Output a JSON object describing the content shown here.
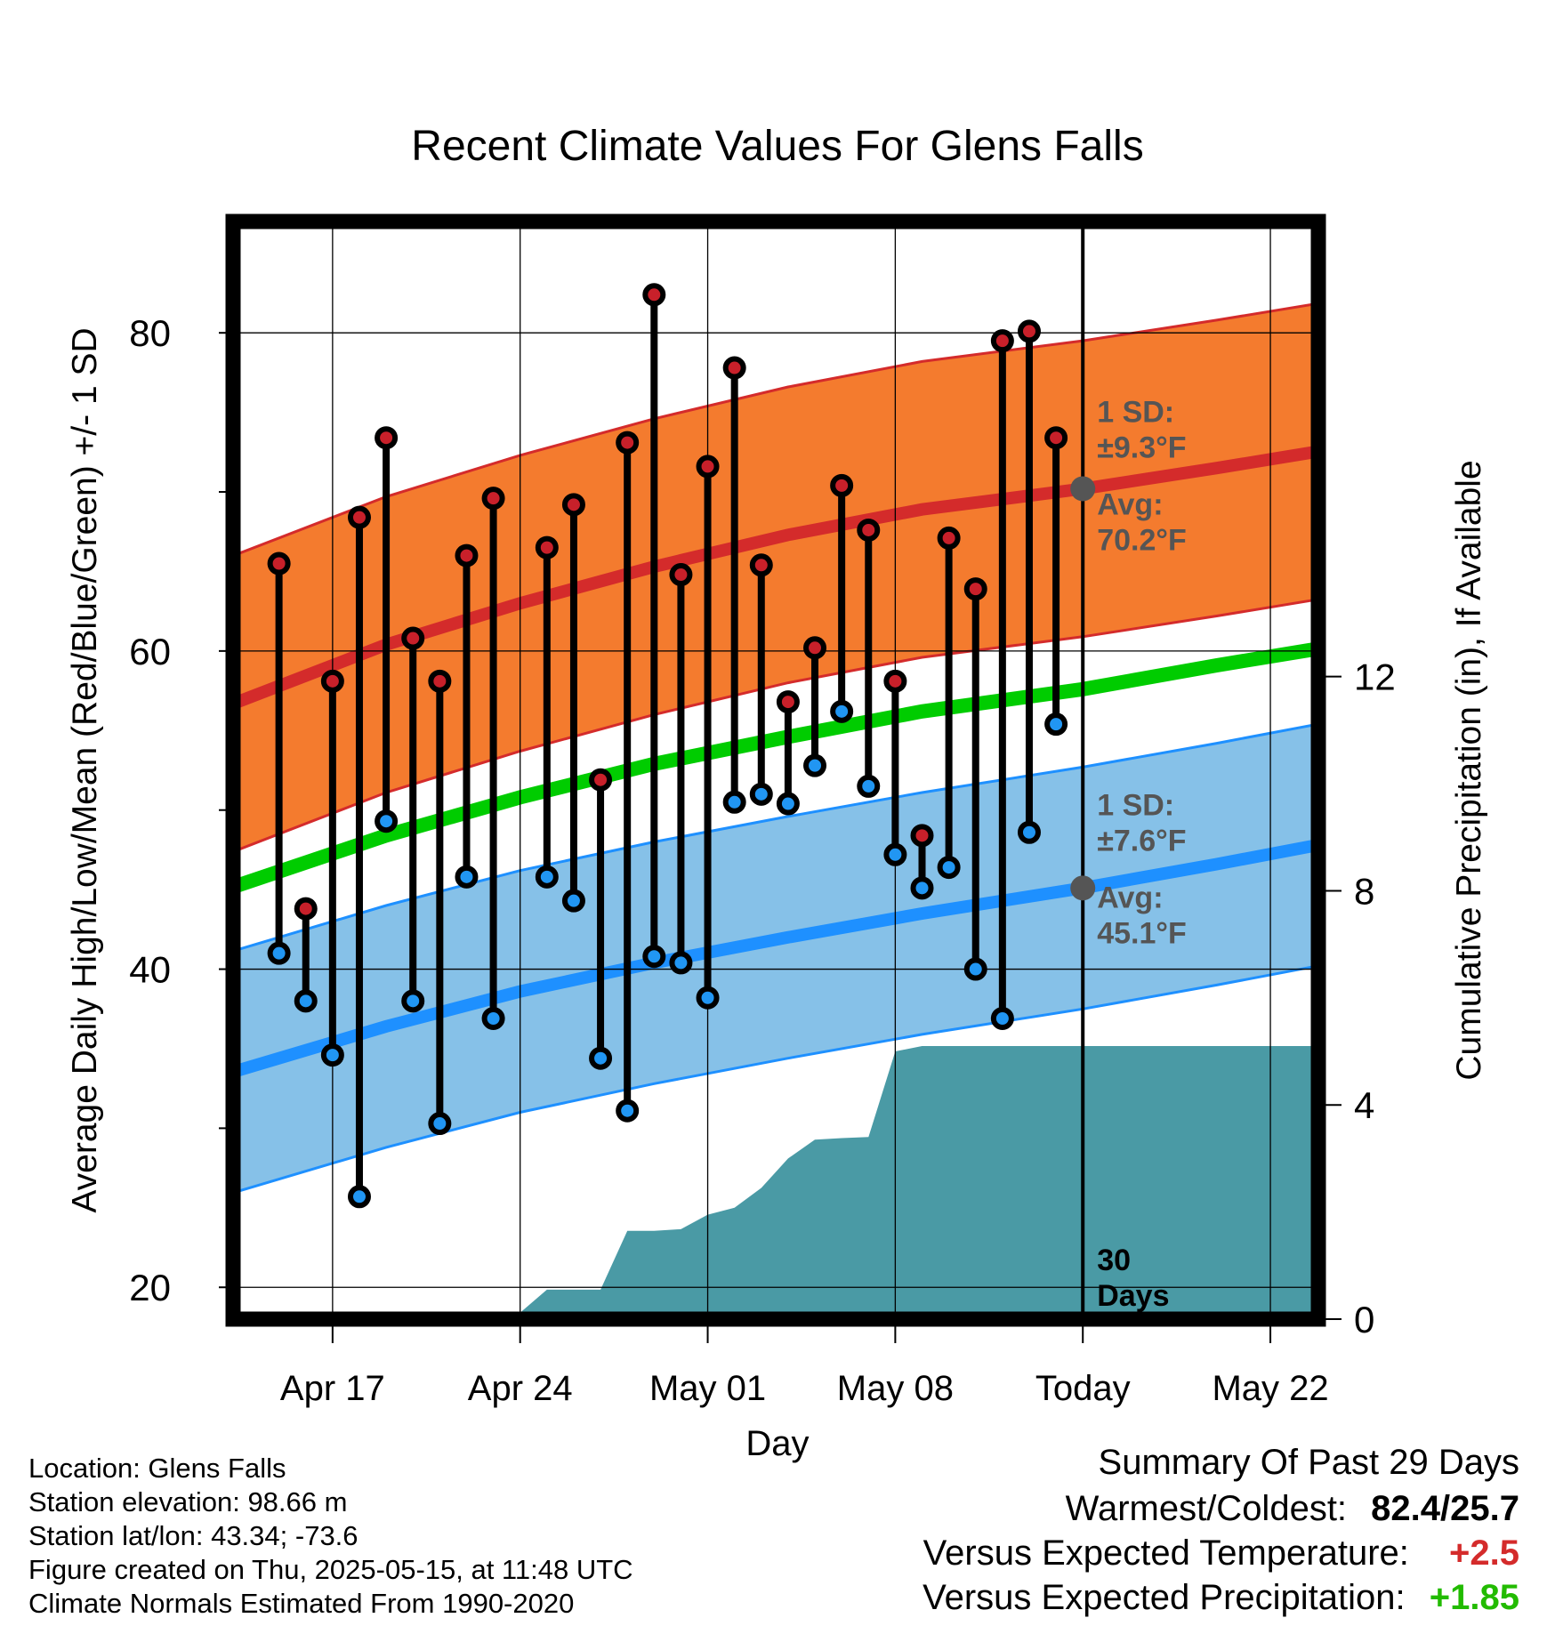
{
  "chart_data": {
    "type": "line",
    "title": "Recent Climate Values For Glens Falls",
    "xlabel": "Day",
    "ylabel": "Average Daily High/Low/Mean (Red/Blue/Green) +/- 1 SD",
    "y2label": "Cumulative Precipitation (in), If Available",
    "x_range_days": [
      0,
      41
    ],
    "ylim": [
      18,
      87
    ],
    "y2lim": [
      0,
      20.5
    ],
    "yticks": [
      20,
      40,
      60,
      80
    ],
    "y2ticks": [
      0,
      4,
      8,
      12
    ],
    "xticks": [
      {
        "label": "Apr 17",
        "day": 3
      },
      {
        "label": "Apr 24",
        "day": 10
      },
      {
        "label": "May 01",
        "day": 17
      },
      {
        "label": "May 08",
        "day": 24
      },
      {
        "label": "Today",
        "day": 31
      },
      {
        "label": "May 22",
        "day": 38
      }
    ],
    "today_day": 31,
    "days_label": [
      "30",
      "Days"
    ],
    "obs_days": [
      1,
      2,
      3,
      4,
      5,
      6,
      7,
      8,
      9,
      10,
      11,
      12,
      13,
      14,
      15,
      16,
      17,
      18,
      19,
      20,
      21,
      22,
      23,
      24,
      25,
      26,
      27,
      28,
      29,
      30
    ],
    "highs": [
      65.5,
      43.8,
      58.1,
      68.4,
      73.4,
      60.8,
      58.1,
      66.0,
      69.6,
      null,
      66.5,
      69.2,
      51.9,
      73.1,
      82.4,
      64.8,
      71.6,
      77.8,
      65.4,
      56.8,
      60.2,
      70.4,
      67.6,
      58.1,
      48.4,
      67.1,
      63.9,
      79.5,
      80.1,
      73.4
    ],
    "lows": [
      41.0,
      38.0,
      34.6,
      25.7,
      49.3,
      38.0,
      30.3,
      45.8,
      36.9,
      null,
      45.8,
      44.3,
      34.4,
      31.1,
      40.8,
      40.4,
      38.2,
      50.5,
      51.0,
      50.4,
      52.8,
      56.2,
      51.5,
      47.2,
      45.1,
      46.4,
      40.0,
      36.9,
      48.6,
      55.4
    ],
    "normal_high": {
      "days": [
        -1,
        5,
        10,
        15,
        20,
        25,
        31,
        36,
        40.7
      ],
      "mean": [
        56.5,
        60.4,
        63.0,
        65.3,
        67.3,
        68.9,
        70.2,
        71.5,
        72.8
      ],
      "sd": 9.3
    },
    "normal_low": {
      "days": [
        -1,
        5,
        10,
        15,
        20,
        25,
        31,
        36,
        40.7
      ],
      "mean": [
        33.4,
        36.4,
        38.6,
        40.4,
        42.0,
        43.5,
        45.1,
        46.6,
        48.1
      ],
      "sd": 7.6
    },
    "normal_mean": {
      "days": [
        -1,
        5,
        10,
        15,
        20,
        25,
        31,
        36,
        40.7
      ],
      "values": [
        45.0,
        48.4,
        50.8,
        52.9,
        54.6,
        56.2,
        57.6,
        59.1,
        60.4
      ]
    },
    "cum_precip": {
      "days": [
        -1,
        4,
        5,
        6,
        7,
        8,
        9,
        10,
        11,
        12,
        13,
        14,
        15,
        16,
        17,
        18,
        19,
        20,
        21,
        22,
        23,
        24,
        25,
        26,
        31,
        40.7
      ],
      "values": [
        0,
        0,
        0.05,
        0.1,
        0.12,
        0.12,
        0.12,
        0.12,
        0.55,
        0.55,
        0.55,
        1.65,
        1.65,
        1.68,
        1.95,
        2.08,
        2.45,
        3.0,
        3.35,
        3.38,
        3.4,
        5.0,
        5.1,
        5.1,
        5.1,
        5.1
      ]
    },
    "annotations": {
      "high_sd": [
        "1 SD:",
        "±9.3°F"
      ],
      "high_avg": [
        "Avg:",
        "70.2°F"
      ],
      "low_sd": [
        "1 SD:",
        "±7.6°F"
      ],
      "low_avg": [
        "Avg:",
        "45.1°F"
      ]
    },
    "colors": {
      "high_band": "#f47b2e",
      "high_line": "#d42b2b",
      "low_band": "#86c1e8",
      "low_line": "#1e90ff",
      "mean_line": "#00cc00",
      "precip": "#4a9aa5",
      "high_dot": "#c8202a",
      "low_dot": "#2196f3",
      "marker_today": "#555555",
      "annotation_text": "#555555"
    }
  },
  "footer": {
    "location": "Location: Glens Falls",
    "elevation": "Station elevation: 98.66 m",
    "latlon": "Station lat/lon: 43.34; -73.6",
    "created": "Figure created on Thu, 2025-05-15, at 11:48 UTC",
    "normals": "Climate Normals Estimated From 1990-2020"
  },
  "summary": {
    "title": "Summary Of Past 29 Days",
    "warmest_label": "Warmest/Coldest:",
    "warmest_value": "82.4/25.7",
    "temp_label": "Versus Expected Temperature:",
    "temp_value": "+2.5",
    "temp_color": "#d42b2b",
    "precip_label": "Versus Expected Precipitation:",
    "precip_value": "+1.85",
    "precip_color": "#22bb00"
  }
}
